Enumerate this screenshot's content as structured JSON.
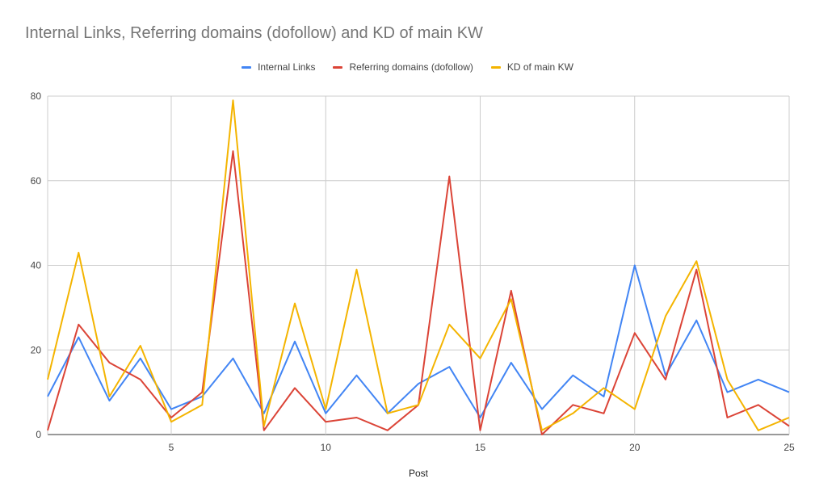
{
  "chart_data": {
    "type": "line",
    "title": "Internal Links, Referring domains (dofollow) and KD of main KW",
    "xlabel": "Post",
    "ylabel": "",
    "xlim": [
      1,
      25
    ],
    "ylim": [
      0,
      80
    ],
    "x_ticks": [
      5,
      10,
      15,
      20,
      25
    ],
    "y_ticks": [
      0,
      20,
      40,
      60,
      80
    ],
    "grid": true,
    "legend_position": "top-center",
    "x": [
      1,
      2,
      3,
      4,
      5,
      6,
      7,
      8,
      9,
      10,
      11,
      12,
      13,
      14,
      15,
      16,
      17,
      18,
      19,
      20,
      21,
      22,
      23,
      24,
      25
    ],
    "series": [
      {
        "name": "Internal Links",
        "color": "#4285f4",
        "values": [
          9,
          23,
          8,
          18,
          6,
          9,
          18,
          5,
          22,
          5,
          14,
          5,
          12,
          16,
          4,
          17,
          6,
          14,
          9,
          40,
          14,
          27,
          10,
          13,
          10
        ]
      },
      {
        "name": "Referring domains (dofollow)",
        "color": "#db4437",
        "values": [
          1,
          26,
          17,
          13,
          4,
          10,
          67,
          1,
          11,
          3,
          4,
          1,
          7,
          61,
          1,
          34,
          0,
          7,
          5,
          24,
          13,
          39,
          4,
          7,
          2
        ]
      },
      {
        "name": "KD of main KW",
        "color": "#f4b400",
        "values": [
          13,
          43,
          9,
          21,
          3,
          7,
          79,
          2,
          31,
          6,
          39,
          5,
          7,
          26,
          18,
          32,
          1,
          5,
          11,
          6,
          28,
          41,
          13,
          1,
          4
        ]
      }
    ]
  }
}
